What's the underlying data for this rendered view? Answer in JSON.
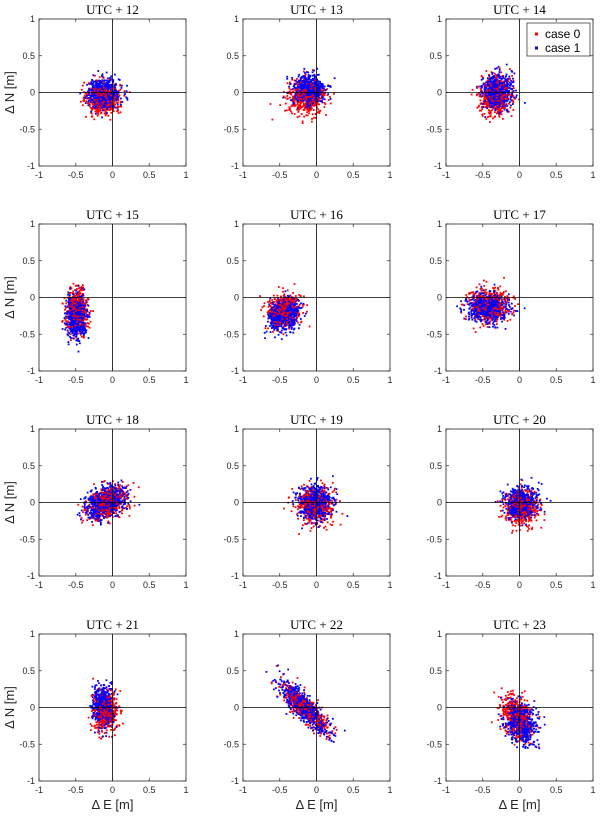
{
  "figure": {
    "xlabel": "Δ E [m]",
    "ylabel": "Δ N [m]"
  },
  "legend": {
    "location": "top-right of panel UTC + 14",
    "entries": [
      {
        "label": "case 0",
        "color": "#ff0000"
      },
      {
        "label": "case 1",
        "color": "#0000ff"
      }
    ]
  },
  "chart_data": [
    {
      "type": "scatter",
      "title": "UTC + 12",
      "xlim": [
        -1,
        1
      ],
      "ylim": [
        -1,
        1
      ],
      "xticks": [
        "-1",
        "-0.5",
        "0",
        "0.5",
        "1"
      ],
      "yticks": [
        "-1",
        "-0.5",
        "0",
        "0.5",
        "1"
      ],
      "series": [
        {
          "name": "case 0",
          "color": "#ff0000",
          "cluster": {
            "center_x": -0.12,
            "center_y": -0.08,
            "spread_x": 0.11,
            "spread_y": 0.11,
            "correlation": 0.0
          }
        },
        {
          "name": "case 1",
          "color": "#0000ff",
          "cluster": {
            "center_x": -0.12,
            "center_y": -0.01,
            "spread_x": 0.11,
            "spread_y": 0.1,
            "correlation": 0.0
          }
        }
      ]
    },
    {
      "type": "scatter",
      "title": "UTC + 13",
      "xlim": [
        -1,
        1
      ],
      "ylim": [
        -1,
        1
      ],
      "xticks": [
        "-1",
        "-0.5",
        "0",
        "0.5",
        "1"
      ],
      "yticks": [
        "-1",
        "-0.5",
        "0",
        "0.5",
        "1"
      ],
      "series": [
        {
          "name": "case 0",
          "color": "#ff0000",
          "cluster": {
            "center_x": -0.13,
            "center_y": -0.06,
            "spread_x": 0.12,
            "spread_y": 0.11,
            "correlation": 0.0
          }
        },
        {
          "name": "case 1",
          "color": "#0000ff",
          "cluster": {
            "center_x": -0.1,
            "center_y": 0.04,
            "spread_x": 0.11,
            "spread_y": 0.11,
            "correlation": 0.0
          }
        }
      ]
    },
    {
      "type": "scatter",
      "title": "UTC + 14",
      "xlim": [
        -1,
        1
      ],
      "ylim": [
        -1,
        1
      ],
      "xticks": [
        "-1",
        "-0.5",
        "0",
        "0.5",
        "1"
      ],
      "yticks": [
        "-1",
        "-0.5",
        "0",
        "0.5",
        "1"
      ],
      "series": [
        {
          "name": "case 0",
          "color": "#ff0000",
          "cluster": {
            "center_x": -0.32,
            "center_y": -0.04,
            "spread_x": 0.1,
            "spread_y": 0.13,
            "correlation": 0.0
          }
        },
        {
          "name": "case 1",
          "color": "#0000ff",
          "cluster": {
            "center_x": -0.3,
            "center_y": 0.02,
            "spread_x": 0.1,
            "spread_y": 0.12,
            "correlation": 0.0
          }
        }
      ]
    },
    {
      "type": "scatter",
      "title": "UTC + 15",
      "xlim": [
        -1,
        1
      ],
      "ylim": [
        -1,
        1
      ],
      "xticks": [
        "-1",
        "-0.5",
        "0",
        "0.5",
        "1"
      ],
      "yticks": [
        "-1",
        "-0.5",
        "0",
        "0.5",
        "1"
      ],
      "series": [
        {
          "name": "case 0",
          "color": "#ff0000",
          "cluster": {
            "center_x": -0.48,
            "center_y": -0.2,
            "spread_x": 0.07,
            "spread_y": 0.14,
            "correlation": 0.0
          }
        },
        {
          "name": "case 1",
          "color": "#0000ff",
          "cluster": {
            "center_x": -0.49,
            "center_y": -0.26,
            "spread_x": 0.07,
            "spread_y": 0.14,
            "correlation": 0.0
          }
        }
      ]
    },
    {
      "type": "scatter",
      "title": "UTC + 16",
      "xlim": [
        -1,
        1
      ],
      "ylim": [
        -1,
        1
      ],
      "xticks": [
        "-1",
        "-0.5",
        "0",
        "0.5",
        "1"
      ],
      "yticks": [
        "-1",
        "-0.5",
        "0",
        "0.5",
        "1"
      ],
      "series": [
        {
          "name": "case 0",
          "color": "#ff0000",
          "cluster": {
            "center_x": -0.44,
            "center_y": -0.18,
            "spread_x": 0.11,
            "spread_y": 0.11,
            "correlation": 0.2
          }
        },
        {
          "name": "case 1",
          "color": "#0000ff",
          "cluster": {
            "center_x": -0.44,
            "center_y": -0.24,
            "spread_x": 0.1,
            "spread_y": 0.11,
            "correlation": 0.2
          }
        }
      ]
    },
    {
      "type": "scatter",
      "title": "UTC + 17",
      "xlim": [
        -1,
        1
      ],
      "ylim": [
        -1,
        1
      ],
      "xticks": [
        "-1",
        "-0.5",
        "0",
        "0.5",
        "1"
      ],
      "yticks": [
        "-1",
        "-0.5",
        "0",
        "0.5",
        "1"
      ],
      "series": [
        {
          "name": "case 0",
          "color": "#ff0000",
          "cluster": {
            "center_x": -0.42,
            "center_y": -0.12,
            "spread_x": 0.14,
            "spread_y": 0.11,
            "correlation": 0.0
          }
        },
        {
          "name": "case 1",
          "color": "#0000ff",
          "cluster": {
            "center_x": -0.44,
            "center_y": -0.15,
            "spread_x": 0.14,
            "spread_y": 0.1,
            "correlation": 0.0
          }
        }
      ]
    },
    {
      "type": "scatter",
      "title": "UTC + 18",
      "xlim": [
        -1,
        1
      ],
      "ylim": [
        -1,
        1
      ],
      "xticks": [
        "-1",
        "-0.5",
        "0",
        "0.5",
        "1"
      ],
      "yticks": [
        "-1",
        "-0.5",
        "0",
        "0.5",
        "1"
      ],
      "series": [
        {
          "name": "case 0",
          "color": "#ff0000",
          "cluster": {
            "center_x": -0.08,
            "center_y": 0.0,
            "spread_x": 0.14,
            "spread_y": 0.11,
            "correlation": 0.4
          }
        },
        {
          "name": "case 1",
          "color": "#0000ff",
          "cluster": {
            "center_x": -0.1,
            "center_y": 0.0,
            "spread_x": 0.14,
            "spread_y": 0.11,
            "correlation": 0.4
          }
        }
      ]
    },
    {
      "type": "scatter",
      "title": "UTC + 19",
      "xlim": [
        -1,
        1
      ],
      "ylim": [
        -1,
        1
      ],
      "xticks": [
        "-1",
        "-0.5",
        "0",
        "0.5",
        "1"
      ],
      "yticks": [
        "-1",
        "-0.5",
        "0",
        "0.5",
        "1"
      ],
      "series": [
        {
          "name": "case 0",
          "color": "#ff0000",
          "cluster": {
            "center_x": -0.02,
            "center_y": -0.04,
            "spread_x": 0.12,
            "spread_y": 0.12,
            "correlation": 0.0
          }
        },
        {
          "name": "case 1",
          "color": "#0000ff",
          "cluster": {
            "center_x": -0.03,
            "center_y": 0.0,
            "spread_x": 0.12,
            "spread_y": 0.12,
            "correlation": 0.0
          }
        }
      ]
    },
    {
      "type": "scatter",
      "title": "UTC + 20",
      "xlim": [
        -1,
        1
      ],
      "ylim": [
        -1,
        1
      ],
      "xticks": [
        "-1",
        "-0.5",
        "0",
        "0.5",
        "1"
      ],
      "yticks": [
        "-1",
        "-0.5",
        "0",
        "0.5",
        "1"
      ],
      "series": [
        {
          "name": "case 0",
          "color": "#ff0000",
          "cluster": {
            "center_x": 0.02,
            "center_y": -0.06,
            "spread_x": 0.11,
            "spread_y": 0.12,
            "correlation": 0.0
          }
        },
        {
          "name": "case 1",
          "color": "#0000ff",
          "cluster": {
            "center_x": 0.01,
            "center_y": 0.0,
            "spread_x": 0.11,
            "spread_y": 0.11,
            "correlation": 0.0
          }
        }
      ]
    },
    {
      "type": "scatter",
      "title": "UTC + 21",
      "xlim": [
        -1,
        1
      ],
      "ylim": [
        -1,
        1
      ],
      "xticks": [
        "-1",
        "-0.5",
        "0",
        "0.5",
        "1"
      ],
      "yticks": [
        "-1",
        "-0.5",
        "0",
        "0.5",
        "1"
      ],
      "series": [
        {
          "name": "case 0",
          "color": "#ff0000",
          "cluster": {
            "center_x": -0.1,
            "center_y": -0.06,
            "spread_x": 0.08,
            "spread_y": 0.13,
            "correlation": 0.0
          }
        },
        {
          "name": "case 1",
          "color": "#0000ff",
          "cluster": {
            "center_x": -0.13,
            "center_y": 0.02,
            "spread_x": 0.07,
            "spread_y": 0.13,
            "correlation": 0.0
          }
        }
      ]
    },
    {
      "type": "scatter",
      "title": "UTC + 22",
      "xlim": [
        -1,
        1
      ],
      "ylim": [
        -1,
        1
      ],
      "xticks": [
        "-1",
        "-0.5",
        "0",
        "0.5",
        "1"
      ],
      "yticks": [
        "-1",
        "-0.5",
        "0",
        "0.5",
        "1"
      ],
      "series": [
        {
          "name": "case 0",
          "color": "#ff0000",
          "cluster": {
            "center_x": -0.15,
            "center_y": -0.02,
            "spread_x": 0.16,
            "spread_y": 0.16,
            "correlation": -0.85
          }
        },
        {
          "name": "case 1",
          "color": "#0000ff",
          "cluster": {
            "center_x": -0.17,
            "center_y": 0.0,
            "spread_x": 0.17,
            "spread_y": 0.18,
            "correlation": -0.85
          }
        }
      ]
    },
    {
      "type": "scatter",
      "title": "UTC + 23",
      "xlim": [
        -1,
        1
      ],
      "ylim": [
        -1,
        1
      ],
      "xticks": [
        "-1",
        "-0.5",
        "0",
        "0.5",
        "1"
      ],
      "yticks": [
        "-1",
        "-0.5",
        "0",
        "0.5",
        "1"
      ],
      "series": [
        {
          "name": "case 0",
          "color": "#ff0000",
          "cluster": {
            "center_x": -0.04,
            "center_y": -0.12,
            "spread_x": 0.1,
            "spread_y": 0.14,
            "correlation": -0.4
          }
        },
        {
          "name": "case 1",
          "color": "#0000ff",
          "cluster": {
            "center_x": 0.02,
            "center_y": -0.22,
            "spread_x": 0.1,
            "spread_y": 0.14,
            "correlation": -0.3
          }
        }
      ]
    }
  ]
}
